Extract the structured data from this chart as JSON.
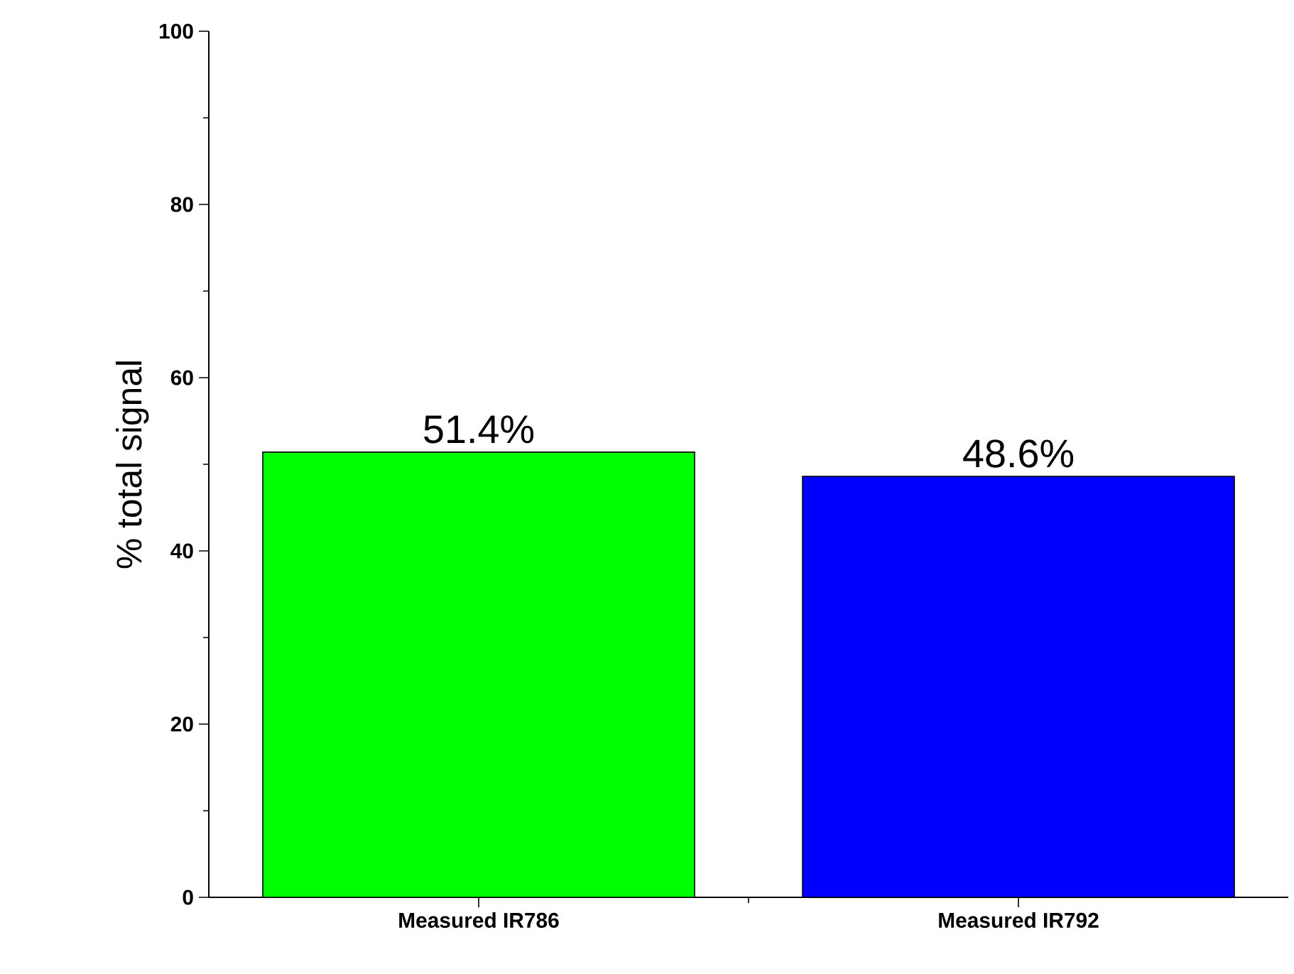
{
  "chart_data": {
    "type": "bar",
    "ylabel": "% total signal",
    "categories": [
      "Measured IR786",
      "Measured IR792"
    ],
    "values": [
      51.4,
      48.6
    ],
    "colors": [
      "#00ff00",
      "#0000ff"
    ],
    "value_labels": [
      "51.4%",
      "48.6%"
    ],
    "ylim": [
      0,
      100
    ],
    "yticks": [
      0,
      20,
      40,
      60,
      80,
      100
    ],
    "grid": false
  }
}
